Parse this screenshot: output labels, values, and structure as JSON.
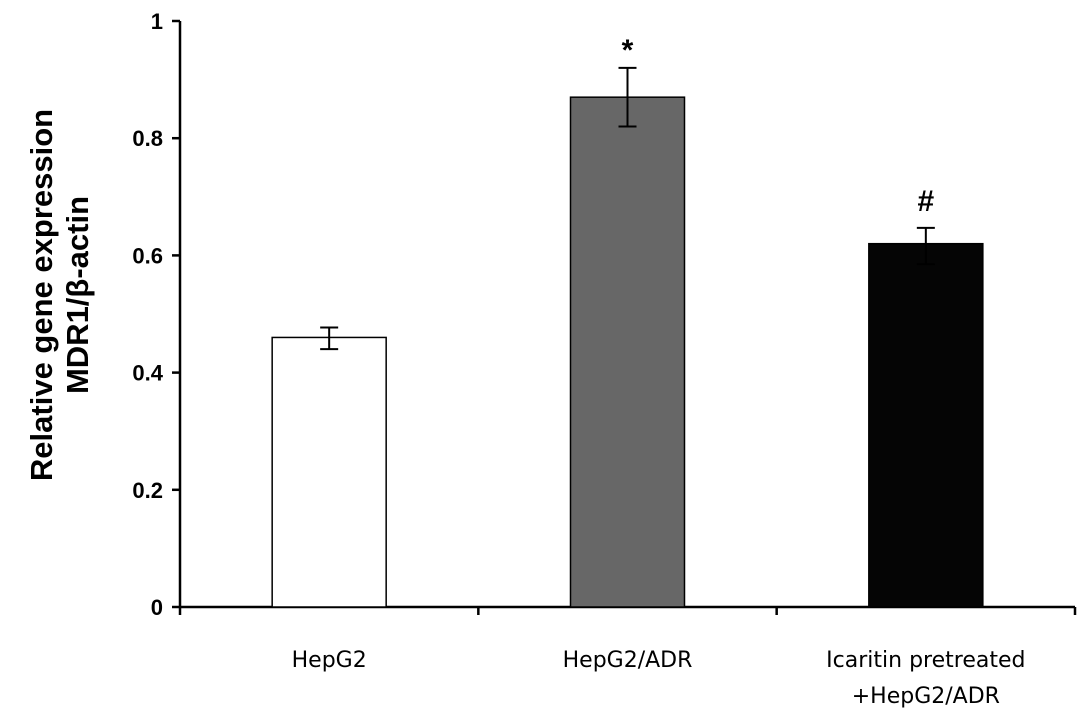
{
  "chart_data": {
    "type": "bar",
    "title": "",
    "xlabel": "",
    "ylabel_lines": [
      "Relative gene expression",
      "MDR1/β-actin"
    ],
    "ylim": [
      0,
      1
    ],
    "yticks": [
      "0",
      "0.2",
      "0.4",
      "0.6",
      "0.8",
      "1"
    ],
    "grid": false,
    "categories": [
      {
        "label_lines": [
          "HepG2"
        ]
      },
      {
        "label_lines": [
          "HepG2/ADR"
        ]
      },
      {
        "label_lines": [
          "Icaritin pretreated",
          "+HepG2/ADR"
        ]
      }
    ],
    "values": [
      0.46,
      0.87,
      0.62
    ],
    "error_low": [
      0.44,
      0.82,
      0.585
    ],
    "error_high": [
      0.477,
      0.92,
      0.647
    ],
    "bar_colors": [
      "#ffffff",
      "#676767",
      "#050505"
    ],
    "annotations": [
      "",
      "*",
      "#"
    ]
  }
}
